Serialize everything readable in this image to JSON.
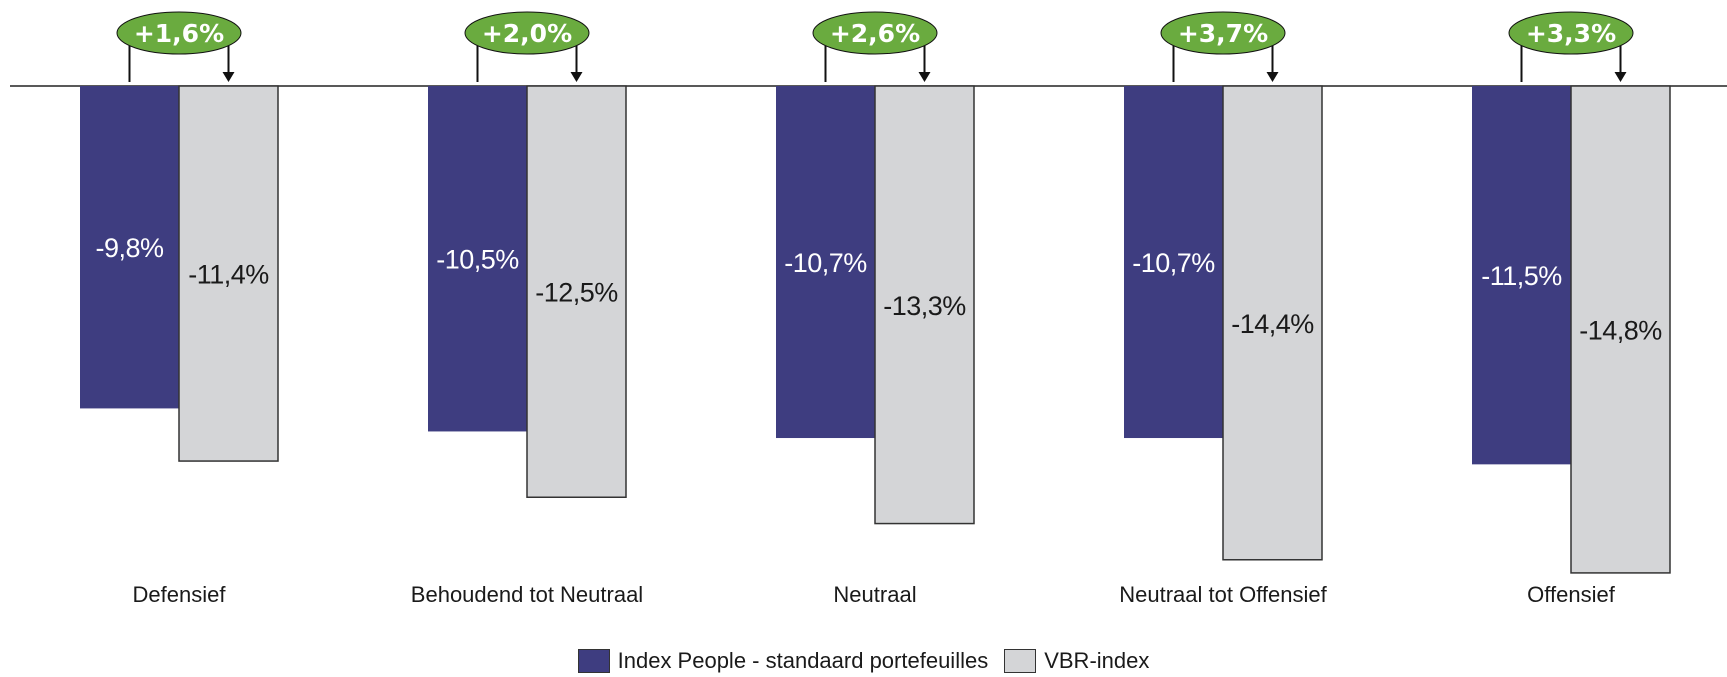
{
  "chart_data": {
    "type": "bar",
    "categories": [
      "Defensief",
      "Behoudend tot Neutraal",
      "Neutraal",
      "Neutraal tot Offensief",
      "Offensief"
    ],
    "series": [
      {
        "name": "Index People - standaard portefeuilles",
        "values": [
          -9.8,
          -10.5,
          -10.7,
          -10.7,
          -11.5
        ],
        "labels": [
          "-9,8%",
          "-10,5%",
          "-10,7%",
          "-10,7%",
          "-11,5%"
        ],
        "color": "#3e3d80"
      },
      {
        "name": "VBR-index",
        "values": [
          -11.4,
          -12.5,
          -13.3,
          -14.4,
          -14.8
        ],
        "labels": [
          "-11,4%",
          "-12,5%",
          "-13,3%",
          "-14,4%",
          "-14,8%"
        ],
        "color": "#d4d5d7"
      }
    ],
    "differences": [
      "+1,6%",
      "+2,0%",
      "+2,6%",
      "+3,7%",
      "+3,3%"
    ],
    "difference_color": "#6aab3f",
    "ylim": [
      -15,
      0
    ],
    "grid": false,
    "legend_position": "bottom"
  }
}
